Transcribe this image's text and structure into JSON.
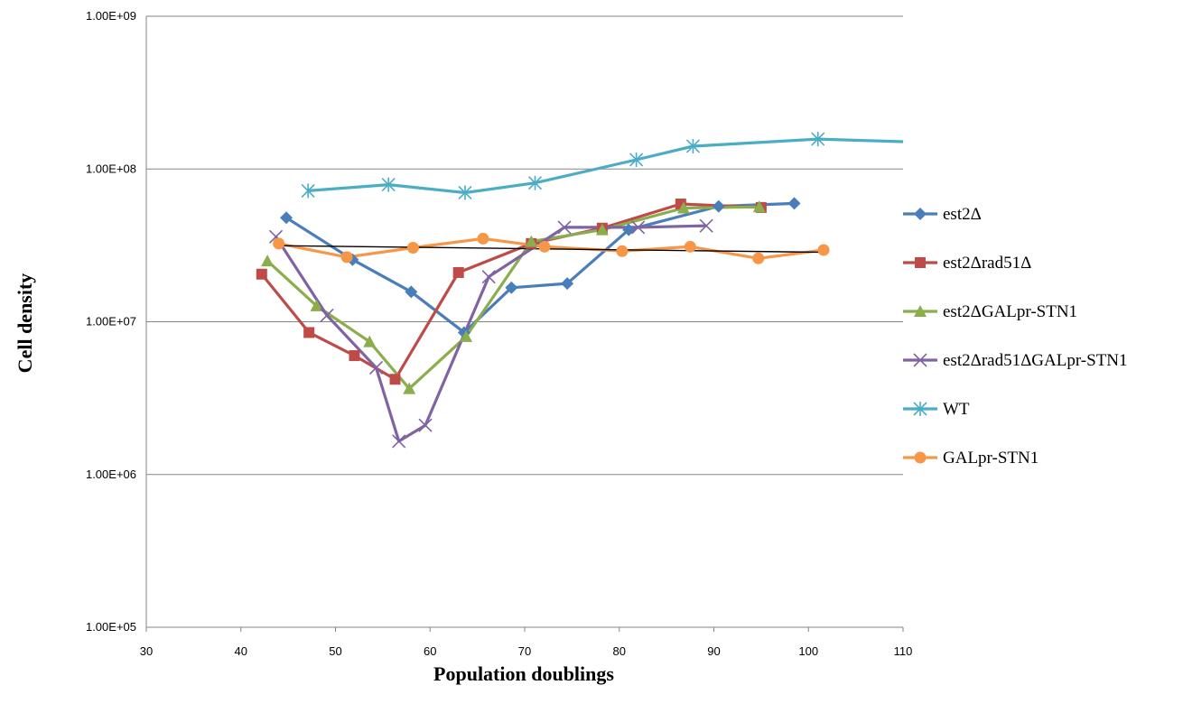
{
  "chart_data": {
    "type": "line",
    "title": "",
    "xlabel": "Population doublings",
    "ylabel": "Cell density",
    "xlim": [
      30,
      110
    ],
    "ylim": [
      100000,
      1000000000
    ],
    "y_scale": "log",
    "grid": "horizontal",
    "legend_position": "right",
    "x_ticks": [
      "30",
      "40",
      "50",
      "60",
      "70",
      "80",
      "90",
      "100",
      "110"
    ],
    "y_ticks": [
      "1.00E+05",
      "1.00E+06",
      "1.00E+07",
      "1.00E+08",
      "1.00E+09"
    ],
    "series": [
      {
        "name": "est2Δ",
        "color": "#4A7EBB",
        "marker": "diamond",
        "points": [
          [
            44.8,
            48000000
          ],
          [
            51.8,
            25500000
          ],
          [
            58.0,
            15700000
          ],
          [
            63.6,
            8500000
          ],
          [
            68.6,
            16700000
          ],
          [
            74.5,
            17800000
          ],
          [
            81.0,
            40000000
          ],
          [
            90.5,
            57000000
          ],
          [
            98.5,
            59500000
          ]
        ]
      },
      {
        "name": "est2Δrad51Δ",
        "color": "#BE4B48",
        "marker": "square",
        "points": [
          [
            42.2,
            20500000
          ],
          [
            47.2,
            8500000
          ],
          [
            52.0,
            6000000
          ],
          [
            56.3,
            4200000
          ],
          [
            63.0,
            21000000
          ],
          [
            70.7,
            32500000
          ],
          [
            78.2,
            41000000
          ],
          [
            86.5,
            59000000
          ],
          [
            95.0,
            56000000
          ]
        ]
      },
      {
        "name": "est2ΔGALpr-STN1",
        "color": "#8BAD4B",
        "marker": "triangle",
        "points": [
          [
            42.8,
            25000000
          ],
          [
            48.0,
            12700000
          ],
          [
            53.6,
            7400000
          ],
          [
            57.8,
            3650000
          ],
          [
            63.8,
            8000000
          ],
          [
            70.7,
            33500000
          ],
          [
            78.2,
            40000000
          ],
          [
            86.8,
            55500000
          ],
          [
            94.8,
            56500000
          ]
        ]
      },
      {
        "name": "est2Δrad51ΔGALpr-STN1",
        "color": "#7F63A2",
        "marker": "x",
        "points": [
          [
            43.7,
            36000000
          ],
          [
            49.1,
            11000000
          ],
          [
            54.3,
            5000000
          ],
          [
            56.7,
            1650000
          ],
          [
            59.5,
            2100000
          ],
          [
            66.2,
            19700000
          ],
          [
            74.2,
            41500000
          ],
          [
            82.0,
            41500000
          ],
          [
            89.2,
            42500000
          ]
        ]
      },
      {
        "name": "WT",
        "color": "#4BACC6",
        "marker": "star",
        "points": [
          [
            47.1,
            72000000
          ],
          [
            55.6,
            79000000
          ],
          [
            63.7,
            70000000
          ],
          [
            71.1,
            81000000
          ],
          [
            81.8,
            115000000
          ],
          [
            87.8,
            141000000
          ],
          [
            101.0,
            157000000
          ],
          [
            110.0,
            151000000
          ]
        ]
      },
      {
        "name": "GALpr-STN1",
        "color": "#F79646",
        "marker": "circle",
        "points": [
          [
            44.0,
            32500000
          ],
          [
            51.2,
            26500000
          ],
          [
            58.2,
            30500000
          ],
          [
            65.6,
            35000000
          ],
          [
            72.1,
            31000000
          ],
          [
            80.3,
            29000000
          ],
          [
            87.5,
            31000000
          ],
          [
            94.7,
            26000000
          ],
          [
            101.6,
            29500000
          ]
        ]
      }
    ],
    "trendline": {
      "color": "#000000",
      "points": [
        [
          44.0,
          31500000
        ],
        [
          101.6,
          28500000
        ]
      ]
    }
  }
}
